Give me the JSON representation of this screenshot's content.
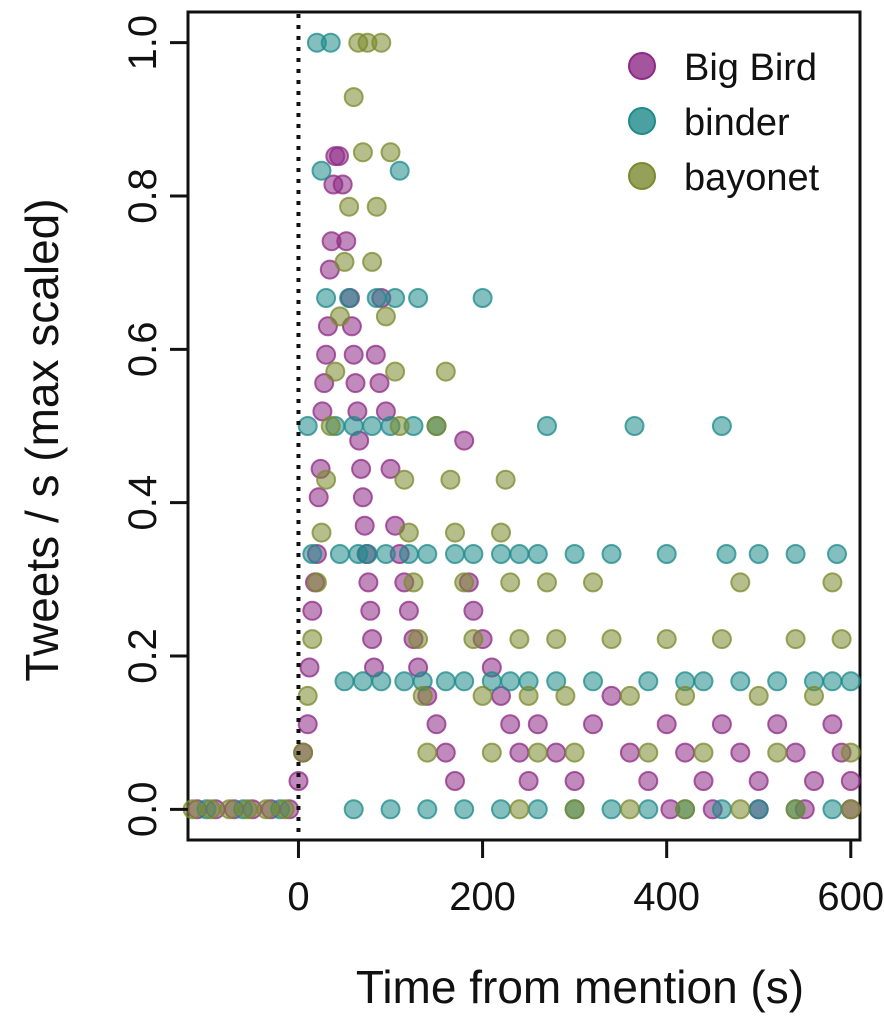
{
  "chart_data": {
    "type": "scatter",
    "title": "",
    "xlabel": "Time from mention (s)",
    "ylabel": "Tweets / s (max scaled)",
    "xlim": [
      -120,
      610
    ],
    "ylim": [
      -0.04,
      1.04
    ],
    "xticks": [
      0,
      200,
      400,
      600
    ],
    "yticks": [
      0.0,
      0.2,
      0.4,
      0.6,
      0.8,
      1.0
    ],
    "xtick_labels": [
      "0",
      "200",
      "400",
      "600"
    ],
    "ytick_labels": [
      "0.0",
      "0.2",
      "0.4",
      "0.6",
      "0.8",
      "1.0"
    ],
    "grid": false,
    "legend_position": "top-right",
    "reference_line": {
      "x": 0,
      "style": "dotted"
    },
    "series": [
      {
        "name": "Big Bird",
        "color": "#8E2A85",
        "points": [
          [
            -110,
            0
          ],
          [
            -90,
            0
          ],
          [
            -70,
            0
          ],
          [
            -50,
            0
          ],
          [
            -30,
            0
          ],
          [
            -10,
            0
          ],
          [
            0,
            0.037
          ],
          [
            5,
            0.074
          ],
          [
            10,
            0.111
          ],
          [
            12,
            0.185
          ],
          [
            15,
            0.259
          ],
          [
            18,
            0.296
          ],
          [
            20,
            0.333
          ],
          [
            22,
            0.407
          ],
          [
            24,
            0.444
          ],
          [
            26,
            0.519
          ],
          [
            28,
            0.556
          ],
          [
            30,
            0.593
          ],
          [
            32,
            0.63
          ],
          [
            34,
            0.704
          ],
          [
            36,
            0.741
          ],
          [
            38,
            0.815
          ],
          [
            40,
            0.852
          ],
          [
            44,
            0.852
          ],
          [
            48,
            0.815
          ],
          [
            52,
            0.741
          ],
          [
            56,
            0.667
          ],
          [
            58,
            0.63
          ],
          [
            60,
            0.593
          ],
          [
            62,
            0.556
          ],
          [
            64,
            0.519
          ],
          [
            66,
            0.481
          ],
          [
            68,
            0.444
          ],
          [
            70,
            0.407
          ],
          [
            72,
            0.37
          ],
          [
            74,
            0.333
          ],
          [
            76,
            0.296
          ],
          [
            78,
            0.259
          ],
          [
            80,
            0.222
          ],
          [
            82,
            0.185
          ],
          [
            84,
            0.593
          ],
          [
            88,
            0.556
          ],
          [
            90,
            0.667
          ],
          [
            95,
            0.519
          ],
          [
            100,
            0.444
          ],
          [
            105,
            0.37
          ],
          [
            110,
            0.333
          ],
          [
            115,
            0.296
          ],
          [
            120,
            0.259
          ],
          [
            125,
            0.222
          ],
          [
            130,
            0.185
          ],
          [
            140,
            0.148
          ],
          [
            150,
            0.111
          ],
          [
            160,
            0.074
          ],
          [
            170,
            0.037
          ],
          [
            180,
            0.481
          ],
          [
            185,
            0.296
          ],
          [
            190,
            0.259
          ],
          [
            200,
            0.222
          ],
          [
            210,
            0.185
          ],
          [
            220,
            0.148
          ],
          [
            230,
            0.111
          ],
          [
            240,
            0.074
          ],
          [
            250,
            0.037
          ],
          [
            260,
            0.111
          ],
          [
            280,
            0.074
          ],
          [
            300,
            0.037
          ],
          [
            320,
            0.111
          ],
          [
            340,
            0.148
          ],
          [
            360,
            0.074
          ],
          [
            380,
            0.037
          ],
          [
            400,
            0.111
          ],
          [
            420,
            0.074
          ],
          [
            440,
            0.037
          ],
          [
            460,
            0.111
          ],
          [
            480,
            0.074
          ],
          [
            500,
            0.037
          ],
          [
            520,
            0.111
          ],
          [
            540,
            0.074
          ],
          [
            560,
            0.037
          ],
          [
            580,
            0.111
          ],
          [
            590,
            0.074
          ],
          [
            600,
            0.037
          ],
          [
            404,
            0
          ],
          [
            450,
            0
          ],
          [
            500,
            0
          ],
          [
            550,
            0
          ],
          [
            600,
            0
          ]
        ]
      },
      {
        "name": "binder",
        "color": "#1E8A8A",
        "points": [
          [
            -100,
            0
          ],
          [
            -60,
            0
          ],
          [
            -20,
            0
          ],
          [
            10,
            0.5
          ],
          [
            15,
            0.333
          ],
          [
            20,
            1.0
          ],
          [
            25,
            0.833
          ],
          [
            30,
            0.667
          ],
          [
            35,
            1.0
          ],
          [
            40,
            0.5
          ],
          [
            45,
            0.333
          ],
          [
            50,
            0.167
          ],
          [
            55,
            0.667
          ],
          [
            60,
            0.5
          ],
          [
            65,
            0.333
          ],
          [
            70,
            0.167
          ],
          [
            75,
            0.333
          ],
          [
            80,
            0.5
          ],
          [
            85,
            0.667
          ],
          [
            90,
            0.167
          ],
          [
            95,
            0.333
          ],
          [
            100,
            0.5
          ],
          [
            105,
            0.667
          ],
          [
            110,
            0.833
          ],
          [
            115,
            0.167
          ],
          [
            120,
            0.333
          ],
          [
            125,
            0.5
          ],
          [
            130,
            0.667
          ],
          [
            135,
            0.167
          ],
          [
            140,
            0.333
          ],
          [
            150,
            0.5
          ],
          [
            160,
            0.167
          ],
          [
            170,
            0.333
          ],
          [
            180,
            0.167
          ],
          [
            190,
            0.333
          ],
          [
            200,
            0.667
          ],
          [
            210,
            0.167
          ],
          [
            220,
            0.333
          ],
          [
            230,
            0.167
          ],
          [
            240,
            0.333
          ],
          [
            250,
            0.167
          ],
          [
            260,
            0.333
          ],
          [
            270,
            0.5
          ],
          [
            280,
            0.167
          ],
          [
            300,
            0.333
          ],
          [
            320,
            0.167
          ],
          [
            340,
            0.333
          ],
          [
            365,
            0.5
          ],
          [
            380,
            0.167
          ],
          [
            400,
            0.333
          ],
          [
            420,
            0.167
          ],
          [
            440,
            0.167
          ],
          [
            460,
            0.5
          ],
          [
            465,
            0.333
          ],
          [
            480,
            0.167
          ],
          [
            500,
            0.333
          ],
          [
            520,
            0.167
          ],
          [
            540,
            0.333
          ],
          [
            560,
            0.167
          ],
          [
            580,
            0.167
          ],
          [
            585,
            0.333
          ],
          [
            600,
            0.167
          ],
          [
            60,
            0
          ],
          [
            100,
            0
          ],
          [
            140,
            0
          ],
          [
            180,
            0
          ],
          [
            220,
            0
          ],
          [
            260,
            0
          ],
          [
            300,
            0
          ],
          [
            340,
            0
          ],
          [
            380,
            0
          ],
          [
            420,
            0
          ],
          [
            460,
            0
          ],
          [
            500,
            0
          ],
          [
            540,
            0
          ],
          [
            580,
            0
          ]
        ]
      },
      {
        "name": "bayonet",
        "color": "#7A8A2E",
        "points": [
          [
            -115,
            0
          ],
          [
            -95,
            0
          ],
          [
            -75,
            0
          ],
          [
            -55,
            0
          ],
          [
            -35,
            0
          ],
          [
            -15,
            0
          ],
          [
            5,
            0.074
          ],
          [
            10,
            0.148
          ],
          [
            15,
            0.222
          ],
          [
            20,
            0.296
          ],
          [
            25,
            0.361
          ],
          [
            30,
            0.43
          ],
          [
            35,
            0.5
          ],
          [
            40,
            0.571
          ],
          [
            45,
            0.643
          ],
          [
            50,
            0.714
          ],
          [
            55,
            0.786
          ],
          [
            60,
            0.929
          ],
          [
            65,
            1.0
          ],
          [
            70,
            0.857
          ],
          [
            75,
            1.0
          ],
          [
            80,
            0.714
          ],
          [
            85,
            0.786
          ],
          [
            90,
            1.0
          ],
          [
            95,
            0.643
          ],
          [
            100,
            0.857
          ],
          [
            105,
            0.571
          ],
          [
            110,
            0.5
          ],
          [
            115,
            0.43
          ],
          [
            120,
            0.361
          ],
          [
            125,
            0.296
          ],
          [
            130,
            0.222
          ],
          [
            135,
            0.148
          ],
          [
            140,
            0.074
          ],
          [
            150,
            0.5
          ],
          [
            160,
            0.571
          ],
          [
            165,
            0.43
          ],
          [
            170,
            0.361
          ],
          [
            180,
            0.296
          ],
          [
            190,
            0.222
          ],
          [
            200,
            0.148
          ],
          [
            210,
            0.074
          ],
          [
            220,
            0.361
          ],
          [
            225,
            0.43
          ],
          [
            230,
            0.296
          ],
          [
            240,
            0.222
          ],
          [
            250,
            0.148
          ],
          [
            260,
            0.074
          ],
          [
            270,
            0.296
          ],
          [
            280,
            0.222
          ],
          [
            290,
            0.148
          ],
          [
            300,
            0.074
          ],
          [
            320,
            0.296
          ],
          [
            340,
            0.222
          ],
          [
            360,
            0.148
          ],
          [
            380,
            0.074
          ],
          [
            400,
            0.222
          ],
          [
            420,
            0.148
          ],
          [
            440,
            0.074
          ],
          [
            460,
            0.222
          ],
          [
            480,
            0.296
          ],
          [
            500,
            0.148
          ],
          [
            520,
            0.074
          ],
          [
            540,
            0.222
          ],
          [
            560,
            0.148
          ],
          [
            580,
            0.296
          ],
          [
            590,
            0.222
          ],
          [
            600,
            0.074
          ],
          [
            240,
            0
          ],
          [
            300,
            0
          ],
          [
            360,
            0
          ],
          [
            420,
            0
          ],
          [
            480,
            0
          ],
          [
            540,
            0
          ],
          [
            600,
            0
          ]
        ]
      }
    ]
  }
}
